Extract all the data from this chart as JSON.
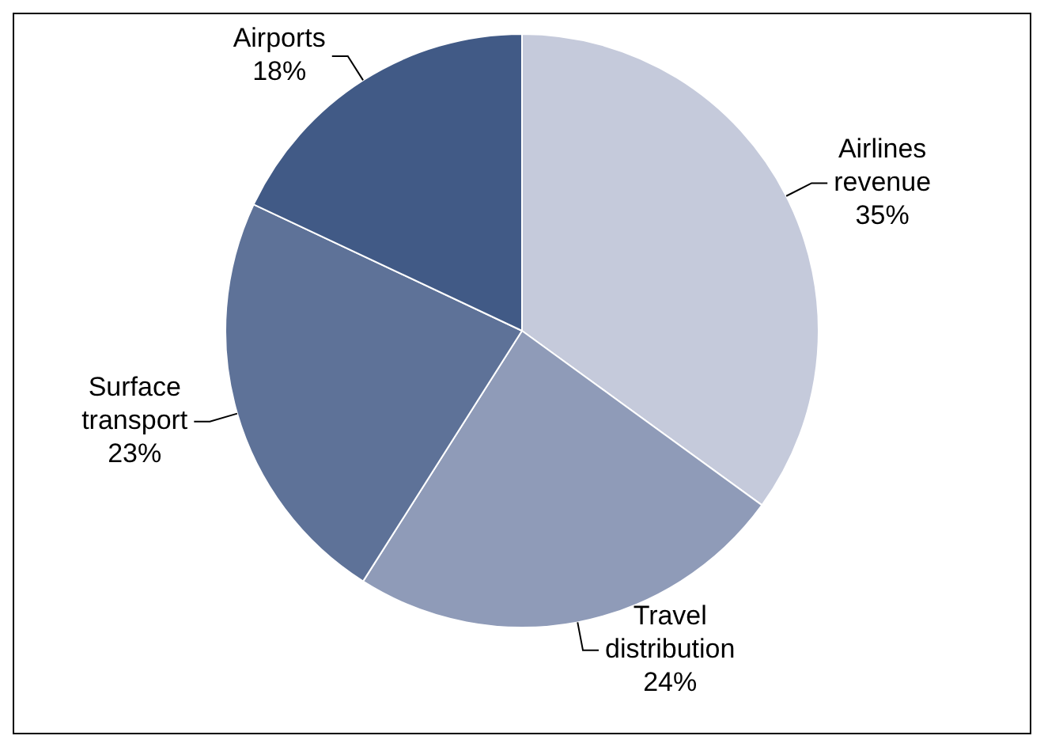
{
  "chart_data": {
    "type": "pie",
    "categories": [
      "Airlines revenue",
      "Travel distribution",
      "Surface transport",
      "Airports"
    ],
    "values": [
      35,
      24,
      23,
      18
    ],
    "colors": [
      "#c5cadb",
      "#8f9bb8",
      "#5e7298",
      "#415a86"
    ],
    "value_labels": [
      "35%",
      "24%",
      "23%",
      "18%"
    ],
    "legend": false
  }
}
